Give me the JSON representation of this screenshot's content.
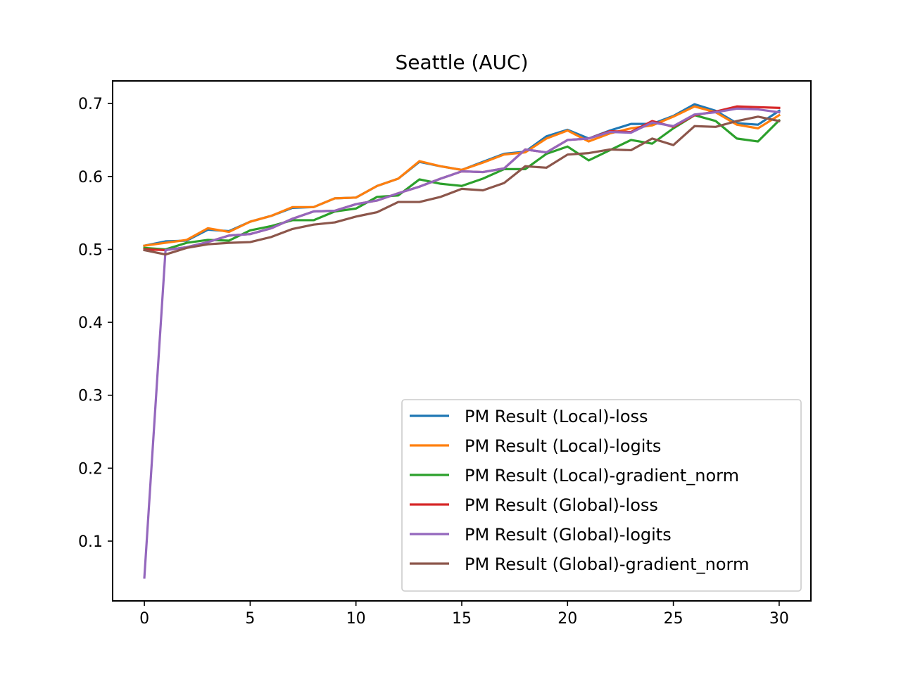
{
  "chart_data": {
    "type": "line",
    "title": "Seattle (AUC)",
    "xlabel": "",
    "ylabel": "",
    "xlim": [
      -1.5,
      31.5
    ],
    "ylim": [
      0.018,
      0.731
    ],
    "xticks": [
      0,
      5,
      10,
      15,
      20,
      25,
      30
    ],
    "xtick_labels": [
      "0",
      "5",
      "10",
      "15",
      "20",
      "25",
      "30"
    ],
    "yticks": [
      0.1,
      0.2,
      0.3,
      0.4,
      0.5,
      0.6,
      0.7
    ],
    "ytick_labels": [
      "0.1",
      "0.2",
      "0.3",
      "0.4",
      "0.5",
      "0.6",
      "0.7"
    ],
    "grid": false,
    "legend_position": "bottom-right",
    "x": [
      0,
      1,
      2,
      3,
      4,
      5,
      6,
      7,
      8,
      9,
      10,
      11,
      12,
      13,
      14,
      15,
      16,
      17,
      18,
      19,
      20,
      21,
      22,
      23,
      24,
      25,
      26,
      27,
      28,
      29,
      30
    ],
    "series": [
      {
        "name": "PM Result (Local)-loss",
        "color": "#1f77b4",
        "values": [
          0.505,
          0.511,
          0.512,
          0.527,
          0.525,
          0.538,
          0.546,
          0.557,
          0.558,
          0.57,
          0.571,
          0.587,
          0.597,
          0.62,
          0.614,
          0.609,
          0.62,
          0.631,
          0.634,
          0.655,
          0.664,
          0.652,
          0.663,
          0.672,
          0.672,
          0.683,
          0.699,
          0.69,
          0.673,
          0.671,
          0.69
        ]
      },
      {
        "name": "PM Result (Local)-logits",
        "color": "#ff7f0e",
        "values": [
          0.505,
          0.509,
          0.513,
          0.529,
          0.524,
          0.538,
          0.546,
          0.558,
          0.558,
          0.57,
          0.571,
          0.587,
          0.597,
          0.621,
          0.614,
          0.609,
          0.619,
          0.63,
          0.633,
          0.652,
          0.663,
          0.648,
          0.659,
          0.666,
          0.67,
          0.682,
          0.696,
          0.688,
          0.671,
          0.666,
          0.684
        ]
      },
      {
        "name": "PM Result (Local)-gradient_norm",
        "color": "#2ca02c",
        "values": [
          0.502,
          0.5,
          0.509,
          0.513,
          0.512,
          0.526,
          0.532,
          0.54,
          0.54,
          0.552,
          0.556,
          0.572,
          0.574,
          0.596,
          0.59,
          0.587,
          0.597,
          0.61,
          0.61,
          0.631,
          0.641,
          0.622,
          0.636,
          0.65,
          0.645,
          0.666,
          0.684,
          0.676,
          0.652,
          0.648,
          0.677
        ]
      },
      {
        "name": "PM Result (Global)-loss",
        "color": "#d62728",
        "values": [
          0.5,
          0.499,
          0.503,
          0.51,
          0.519,
          0.521,
          0.529,
          0.542,
          0.552,
          0.553,
          0.562,
          0.567,
          0.577,
          0.586,
          0.597,
          0.607,
          0.606,
          0.611,
          0.637,
          0.633,
          0.65,
          0.652,
          0.662,
          0.661,
          0.676,
          0.668,
          0.684,
          0.689,
          0.696,
          0.695,
          0.694
        ]
      },
      {
        "name": "PM Result (Global)-logits",
        "color": "#9467bd",
        "values": [
          0.05,
          0.499,
          0.503,
          0.51,
          0.519,
          0.521,
          0.529,
          0.542,
          0.552,
          0.553,
          0.562,
          0.567,
          0.577,
          0.586,
          0.597,
          0.607,
          0.606,
          0.611,
          0.637,
          0.633,
          0.65,
          0.652,
          0.661,
          0.66,
          0.674,
          0.669,
          0.685,
          0.688,
          0.693,
          0.692,
          0.688
        ]
      },
      {
        "name": "PM Result (Global)-gradient_norm",
        "color": "#8c564b",
        "values": [
          0.499,
          0.493,
          0.502,
          0.507,
          0.509,
          0.51,
          0.517,
          0.528,
          0.534,
          0.537,
          0.545,
          0.551,
          0.565,
          0.565,
          0.572,
          0.583,
          0.581,
          0.591,
          0.614,
          0.612,
          0.63,
          0.632,
          0.637,
          0.636,
          0.652,
          0.643,
          0.669,
          0.668,
          0.676,
          0.682,
          0.676
        ]
      }
    ]
  }
}
